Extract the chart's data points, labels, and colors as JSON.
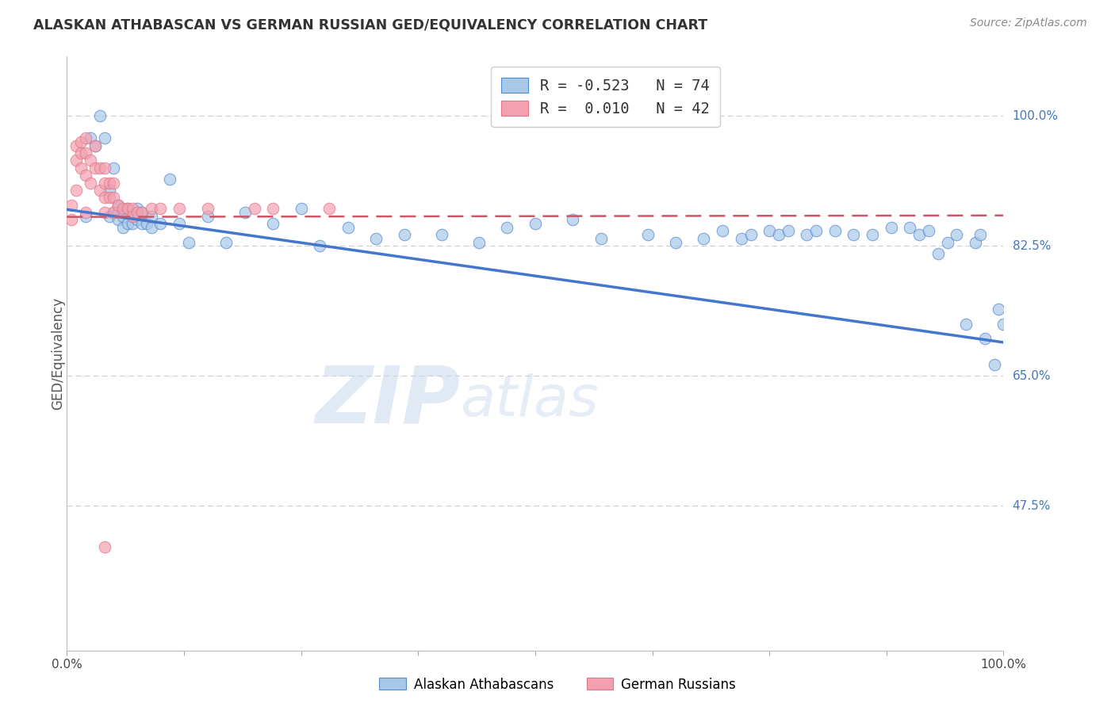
{
  "title": "ALASKAN ATHABASCAN VS GERMAN RUSSIAN GED/EQUIVALENCY CORRELATION CHART",
  "source": "Source: ZipAtlas.com",
  "ylabel": "GED/Equivalency",
  "ytick_labels": [
    "100.0%",
    "82.5%",
    "65.0%",
    "47.5%"
  ],
  "ytick_values": [
    1.0,
    0.825,
    0.65,
    0.475
  ],
  "xlim": [
    0.0,
    1.0
  ],
  "ylim": [
    0.28,
    1.08
  ],
  "blue_color": "#A8C8E8",
  "pink_color": "#F4A0B0",
  "blue_edge_color": "#5588CC",
  "pink_edge_color": "#DD7788",
  "blue_line_color": "#4477CC",
  "pink_line_color": "#CC5566",
  "watermark_color": "#C8D8EC",
  "blue_scatter_x": [
    0.02,
    0.025,
    0.03,
    0.035,
    0.04,
    0.045,
    0.045,
    0.05,
    0.05,
    0.055,
    0.055,
    0.055,
    0.06,
    0.06,
    0.06,
    0.065,
    0.065,
    0.07,
    0.07,
    0.07,
    0.075,
    0.075,
    0.08,
    0.08,
    0.085,
    0.09,
    0.09,
    0.1,
    0.11,
    0.12,
    0.13,
    0.15,
    0.17,
    0.19,
    0.22,
    0.25,
    0.27,
    0.3,
    0.33,
    0.36,
    0.4,
    0.44,
    0.47,
    0.5,
    0.54,
    0.57,
    0.62,
    0.65,
    0.68,
    0.7,
    0.72,
    0.73,
    0.75,
    0.76,
    0.77,
    0.79,
    0.8,
    0.82,
    0.84,
    0.86,
    0.88,
    0.9,
    0.91,
    0.92,
    0.93,
    0.94,
    0.95,
    0.96,
    0.97,
    0.975,
    0.98,
    0.99,
    0.995,
    1.0
  ],
  "blue_scatter_y": [
    0.865,
    0.97,
    0.96,
    1.0,
    0.97,
    0.9,
    0.865,
    0.93,
    0.87,
    0.88,
    0.87,
    0.86,
    0.865,
    0.87,
    0.85,
    0.875,
    0.855,
    0.87,
    0.865,
    0.855,
    0.875,
    0.86,
    0.855,
    0.87,
    0.855,
    0.85,
    0.865,
    0.855,
    0.915,
    0.855,
    0.83,
    0.865,
    0.83,
    0.87,
    0.855,
    0.875,
    0.825,
    0.85,
    0.835,
    0.84,
    0.84,
    0.83,
    0.85,
    0.855,
    0.86,
    0.835,
    0.84,
    0.83,
    0.835,
    0.845,
    0.835,
    0.84,
    0.845,
    0.84,
    0.845,
    0.84,
    0.845,
    0.845,
    0.84,
    0.84,
    0.85,
    0.85,
    0.84,
    0.845,
    0.815,
    0.83,
    0.84,
    0.72,
    0.83,
    0.84,
    0.7,
    0.665,
    0.74,
    0.72
  ],
  "pink_scatter_x": [
    0.005,
    0.005,
    0.01,
    0.01,
    0.01,
    0.015,
    0.015,
    0.015,
    0.02,
    0.02,
    0.02,
    0.02,
    0.025,
    0.025,
    0.03,
    0.03,
    0.035,
    0.035,
    0.04,
    0.04,
    0.04,
    0.04,
    0.045,
    0.045,
    0.05,
    0.05,
    0.05,
    0.055,
    0.06,
    0.065,
    0.07,
    0.07,
    0.075,
    0.08,
    0.09,
    0.1,
    0.12,
    0.15,
    0.2,
    0.22,
    0.28,
    0.04
  ],
  "pink_scatter_y": [
    0.88,
    0.86,
    0.96,
    0.94,
    0.9,
    0.965,
    0.95,
    0.93,
    0.97,
    0.95,
    0.92,
    0.87,
    0.94,
    0.91,
    0.96,
    0.93,
    0.93,
    0.9,
    0.93,
    0.91,
    0.89,
    0.87,
    0.91,
    0.89,
    0.91,
    0.89,
    0.87,
    0.88,
    0.875,
    0.875,
    0.875,
    0.865,
    0.87,
    0.87,
    0.875,
    0.875,
    0.875,
    0.875,
    0.875,
    0.875,
    0.875,
    0.42
  ],
  "blue_trend_x0": 0.0,
  "blue_trend_x1": 1.0,
  "blue_trend_y0": 0.874,
  "blue_trend_y1": 0.695,
  "pink_trend_x0": 0.0,
  "pink_trend_x1": 1.0,
  "pink_trend_y0": 0.864,
  "pink_trend_y1": 0.866,
  "legend_lines": [
    "R = -0.523   N = 74",
    "R =  0.010   N = 42"
  ]
}
